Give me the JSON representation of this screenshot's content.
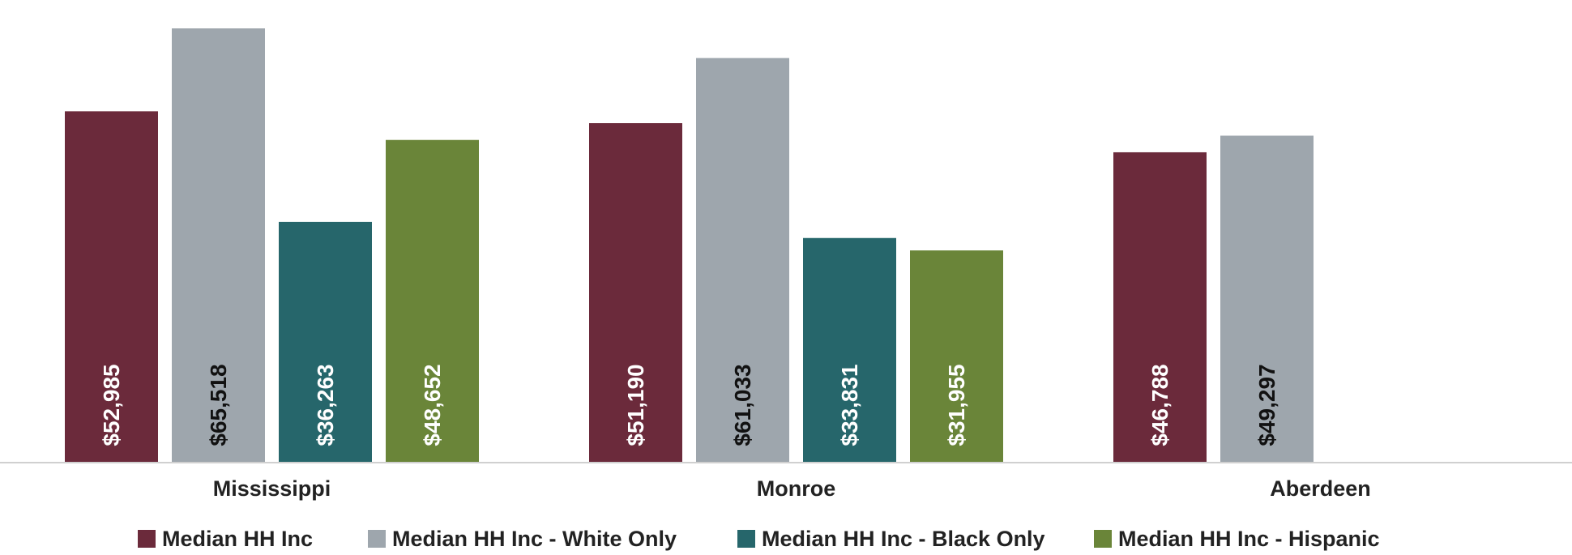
{
  "chart_data": {
    "type": "bar",
    "title": "",
    "xlabel": "",
    "ylabel": "",
    "ylim": [
      0,
      66500
    ],
    "grid": false,
    "legend_position": "bottom",
    "categories": [
      "Mississippi",
      "Monroe",
      "Aberdeen"
    ],
    "series": [
      {
        "name": "Median HH Inc",
        "color": "#6b2a3b",
        "values": [
          52985,
          51190,
          46788
        ],
        "labels": [
          "$52,985",
          "$51,190",
          "$46,788"
        ],
        "label_color": "#ffffff"
      },
      {
        "name": "Median HH Inc - White Only",
        "color": "#9ea6ad",
        "values": [
          65518,
          61033,
          49297
        ],
        "labels": [
          "$65,518",
          "$61,033",
          "$49,297"
        ],
        "label_color": "#111111"
      },
      {
        "name": "Median HH Inc - Black Only",
        "color": "#26666b",
        "values": [
          36263,
          33831,
          null
        ],
        "labels": [
          "$36,263",
          "$33,831",
          ""
        ],
        "label_color": "#ffffff"
      },
      {
        "name": "Median HH Inc - Hispanic",
        "color": "#6a8539",
        "values": [
          48652,
          31955,
          null
        ],
        "labels": [
          "$48,652",
          "$31,955",
          ""
        ],
        "label_color": "#ffffff"
      }
    ]
  }
}
